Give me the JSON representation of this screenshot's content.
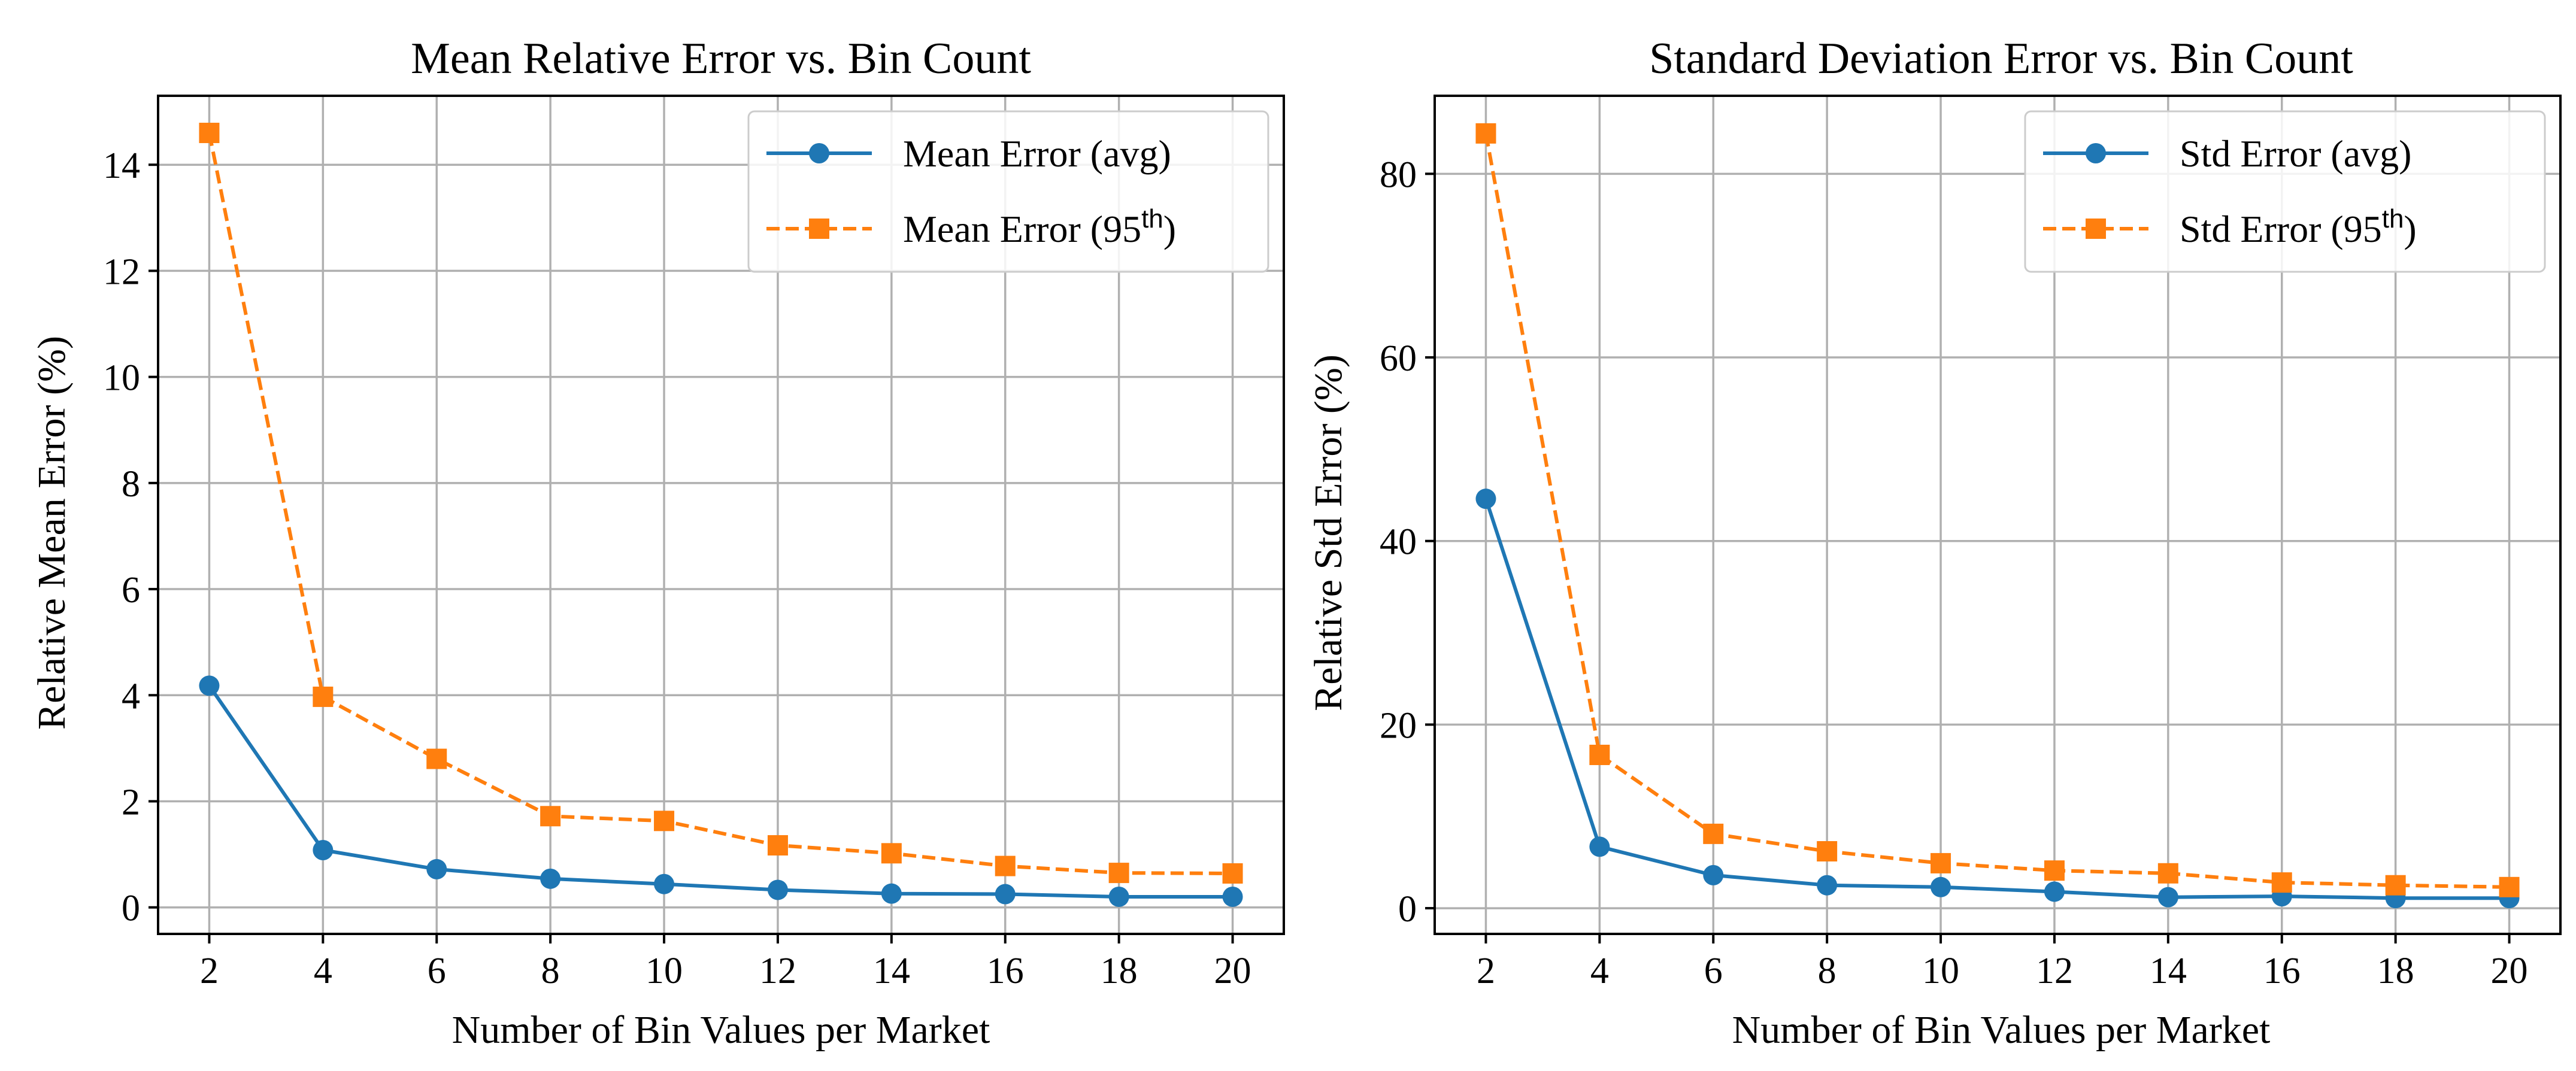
{
  "chart_data": [
    {
      "type": "line",
      "title": "Mean Relative Error vs. Bin Count",
      "xlabel": "Number of Bin Values per Market",
      "ylabel": "Relative Mean Error (%)",
      "x": [
        2,
        4,
        6,
        8,
        10,
        12,
        14,
        16,
        18,
        20
      ],
      "xticks": [
        2,
        4,
        6,
        8,
        10,
        12,
        14,
        16,
        18,
        20
      ],
      "yticks": [
        0,
        2,
        4,
        6,
        8,
        10,
        12,
        14
      ],
      "xlim": [
        1.1,
        20.9
      ],
      "ylim": [
        -0.5,
        15.3
      ],
      "grid": true,
      "legend_position": "top-right",
      "series": [
        {
          "name": "Mean Error (avg)",
          "color": "#1f77b4",
          "linestyle": "solid",
          "marker": "circle",
          "values": [
            4.18,
            1.08,
            0.72,
            0.54,
            0.44,
            0.33,
            0.26,
            0.25,
            0.2,
            0.2
          ]
        },
        {
          "name": "Mean Error (95",
          "name_sup": "th",
          "name_suffix": ")",
          "color": "#ff7f0e",
          "linestyle": "dashed",
          "marker": "square",
          "values": [
            14.6,
            3.97,
            2.8,
            1.72,
            1.63,
            1.17,
            1.02,
            0.78,
            0.65,
            0.64
          ]
        }
      ]
    },
    {
      "type": "line",
      "title": "Standard Deviation Error vs. Bin Count",
      "xlabel": "Number of Bin Values per Market",
      "ylabel": "Relative Std Error (%)",
      "x": [
        2,
        4,
        6,
        8,
        10,
        12,
        14,
        16,
        18,
        20
      ],
      "xticks": [
        2,
        4,
        6,
        8,
        10,
        12,
        14,
        16,
        18,
        20
      ],
      "yticks": [
        0,
        20,
        40,
        60,
        80
      ],
      "xlim": [
        1.1,
        20.9
      ],
      "ylim": [
        -2.8,
        88.5
      ],
      "grid": true,
      "legend_position": "top-right",
      "series": [
        {
          "name": "Std Error (avg)",
          "color": "#1f77b4",
          "linestyle": "solid",
          "marker": "circle",
          "values": [
            44.6,
            6.7,
            3.6,
            2.5,
            2.3,
            1.8,
            1.2,
            1.3,
            1.1,
            1.1
          ]
        },
        {
          "name": "Std Error (95",
          "name_sup": "th",
          "name_suffix": ")",
          "color": "#ff7f0e",
          "linestyle": "dashed",
          "marker": "square",
          "values": [
            84.4,
            16.7,
            8.1,
            6.2,
            4.9,
            4.1,
            3.8,
            2.8,
            2.5,
            2.3
          ]
        }
      ]
    }
  ]
}
